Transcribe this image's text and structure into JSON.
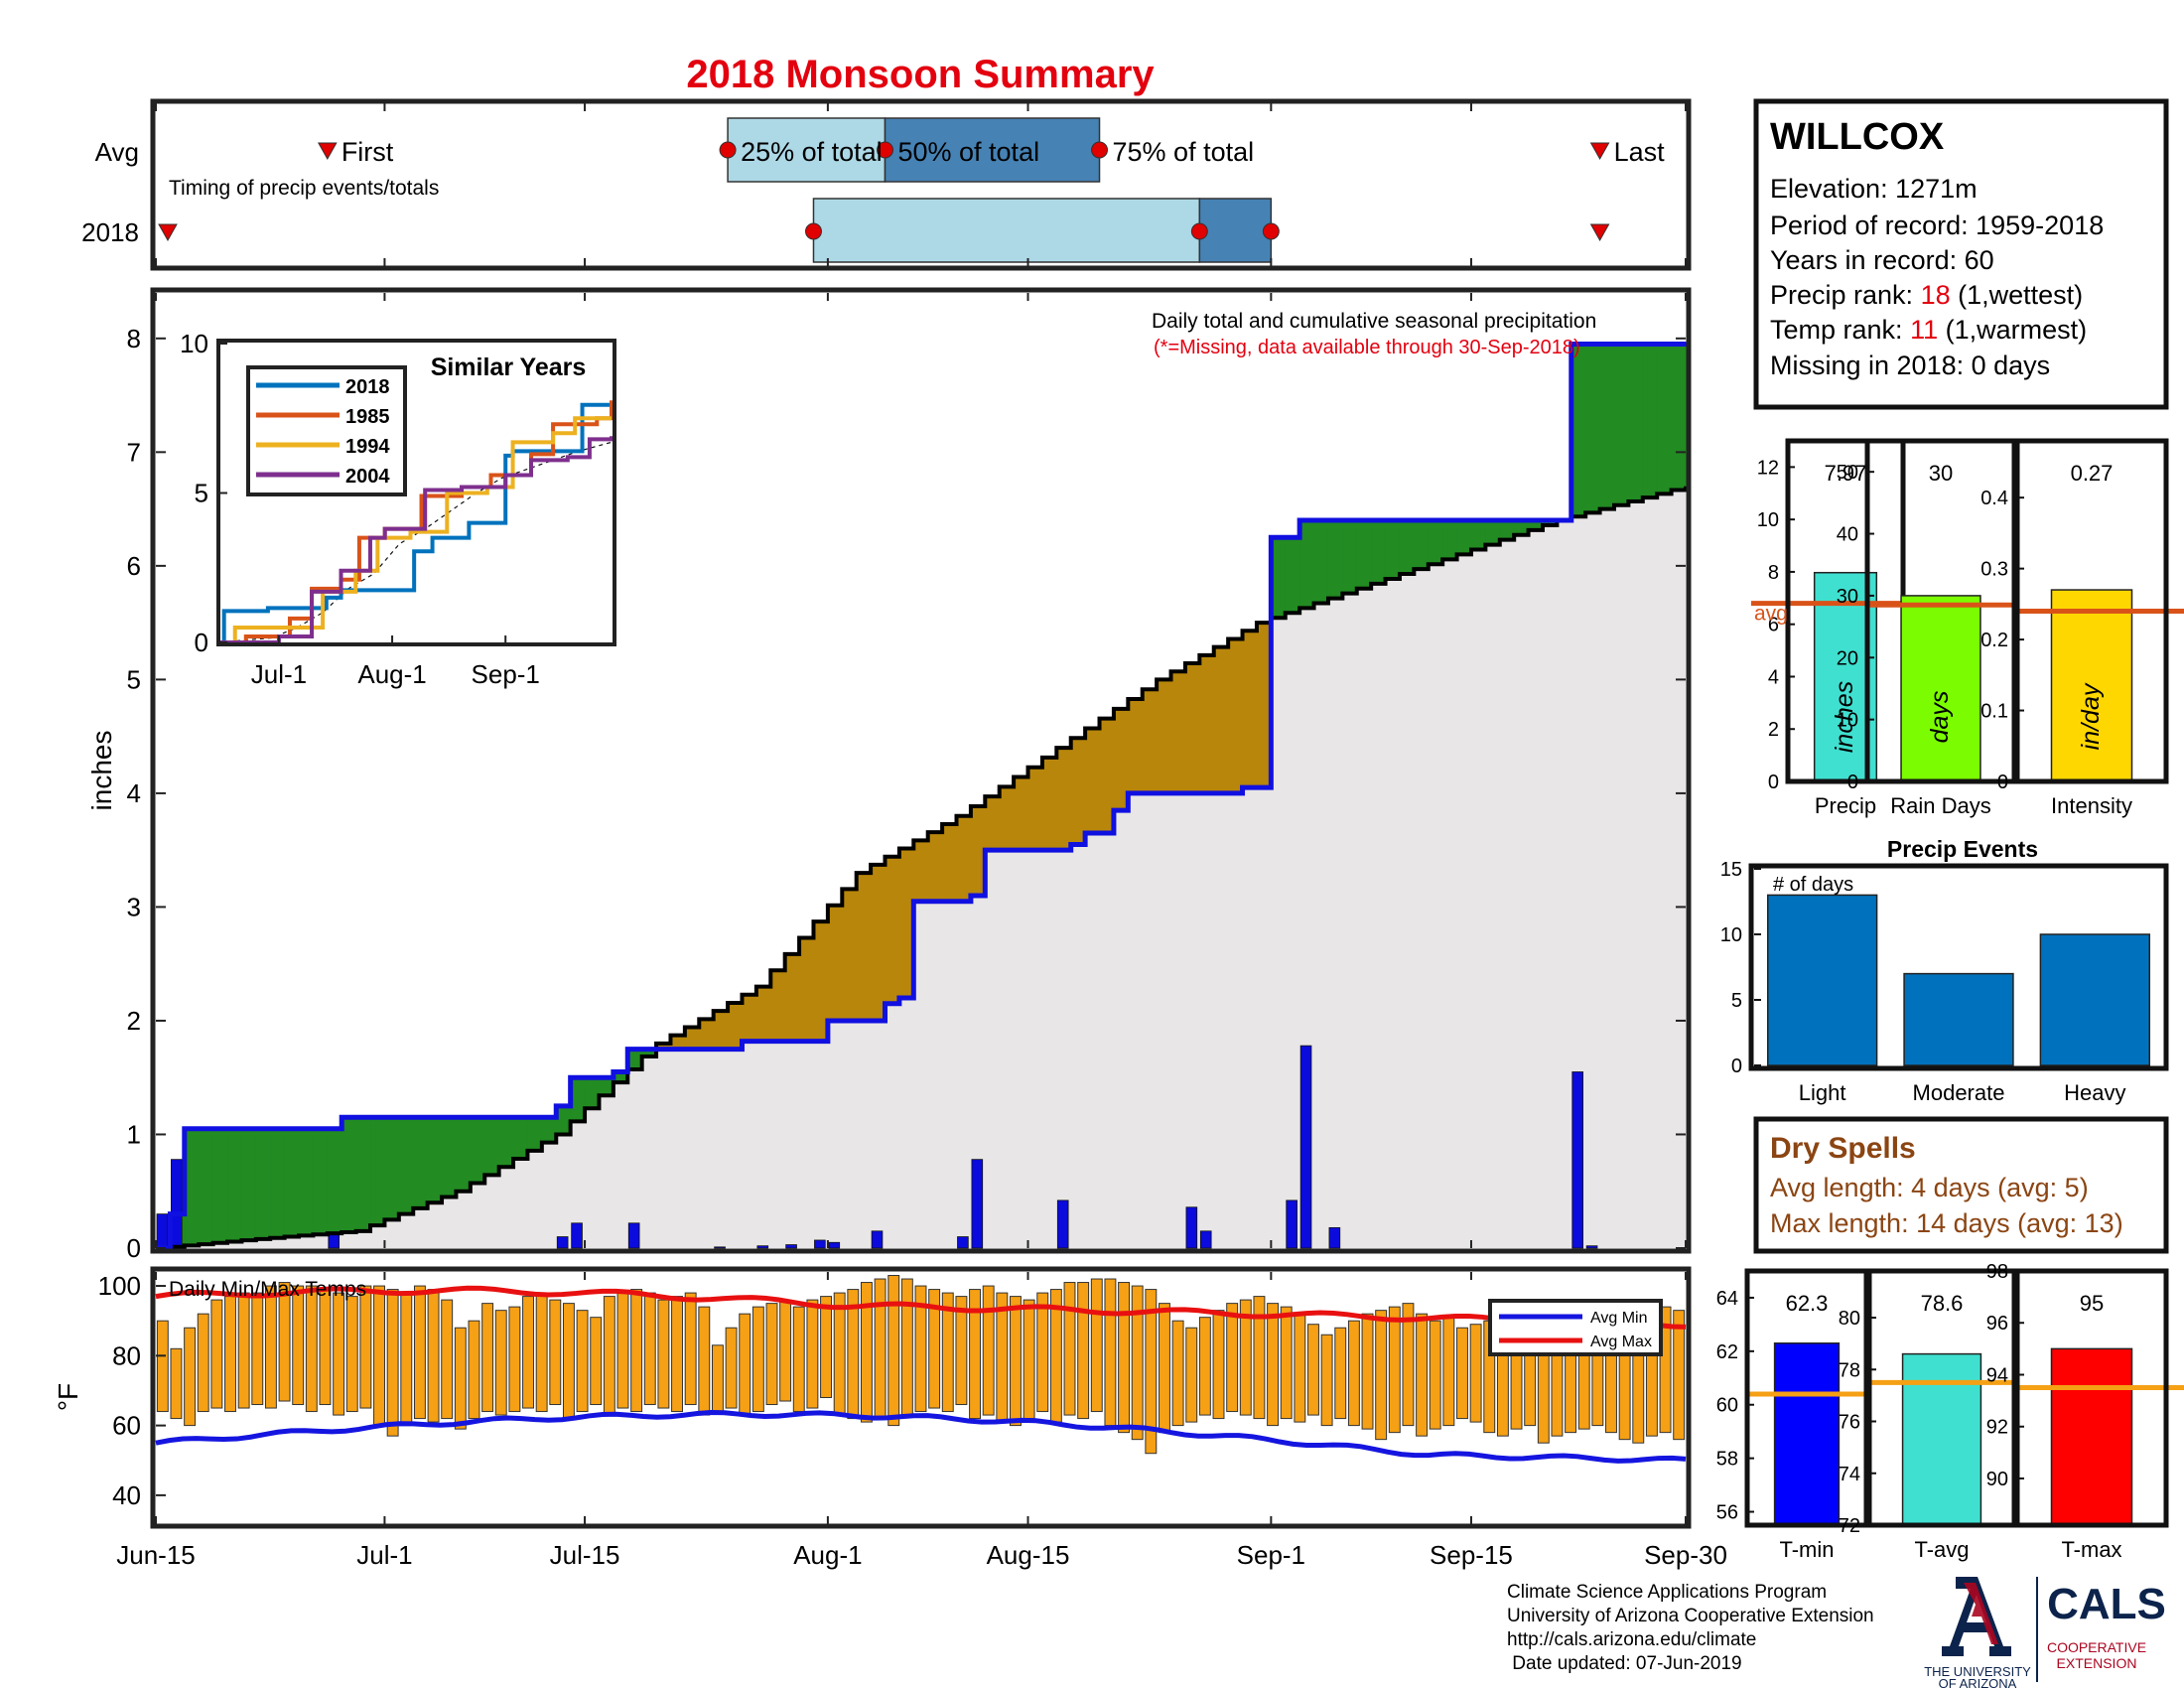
{
  "title": "2018 Monsoon Summary",
  "colors": {
    "title": "#e3000f",
    "missing": "#e3000f",
    "cum_2018": "#1010e0",
    "avg_cum": "#000000",
    "area_fill": "#e8e6e6",
    "above_avg": "#228b22",
    "below_avg": "#b8860b",
    "daily_bar": "#0b0bdd",
    "temp_bar": "#f5a015",
    "avg_min": "#1515e0",
    "avg_max": "#e81010",
    "timing_light": "#add8e6",
    "timing_dark": "#4682b4",
    "marker": "#e00000",
    "stat_avg_line": "#d95319",
    "temp_avg_line": "#f5a015",
    "precip_bar": "#40e0d0",
    "raindays_bar": "#7cfc00",
    "intensity_bar": "#ffd700",
    "events_bar": "#0072bd",
    "tmin_bar": "#0000ff",
    "tavg_bar": "#40e0d0",
    "tmax_bar": "#ff0000",
    "dry_text": "#8b4513",
    "ua_blue": "#0c234b",
    "ua_red": "#ab0520"
  },
  "timing": {
    "row_labels": [
      "Avg",
      "2018"
    ],
    "caption": "Timing of precip events/totals",
    "first_label": "First",
    "last_label": "Last",
    "p25_label": "25% of total",
    "p50_label": "50% of total",
    "p75_label": "75% of total",
    "avg": {
      "first": "2018-06-27",
      "p25": "2018-07-25",
      "p50": "2018-08-05",
      "p75": "2018-08-20",
      "last": "2018-09-24"
    },
    "y2018": {
      "first": "2018-06-15",
      "p25": "2018-07-31",
      "p50": "2018-08-20",
      "p75": "2018-08-27",
      "last": "2018-09-24"
    }
  },
  "station": {
    "name": "WILLCOX",
    "elevation_label": "Elevation: 1271m",
    "period_label": "Period of record: 1959-2018",
    "years_label": "Years in record: 60",
    "precip_rank_prefix": "Precip rank: ",
    "precip_rank": "18",
    "precip_rank_suffix": " (1,wettest)",
    "temp_rank_prefix": "Temp rank: ",
    "temp_rank": "11",
    "temp_rank_suffix": " (1,warmest)",
    "missing_label": "Missing in 2018: 0 days"
  },
  "main": {
    "note": "Daily total and cumulative seasonal precipitation",
    "missing_note": "(*=Missing, data available through 30-Sep-2018)",
    "ylabel": "inches",
    "ylim": [
      0,
      8.4
    ],
    "yticks": [
      "0",
      "1",
      "2",
      "3",
      "4",
      "5",
      "6",
      "7",
      "8"
    ],
    "xticks": [
      "Jun-15",
      "Jul-1",
      "Jul-15",
      "Aug-1",
      "Aug-15",
      "Sep-1",
      "Sep-15",
      "Sep-30"
    ]
  },
  "inset": {
    "title": "Similar Years",
    "xticks": [
      "Jul-1",
      "Aug-1",
      "Sep-1"
    ],
    "yticks": [
      "0",
      "5",
      "10"
    ],
    "legend": [
      "2018",
      "1985",
      "1994",
      "2004"
    ],
    "line_colors": [
      "#0072bd",
      "#d95319",
      "#edb120",
      "#7e2f8e"
    ]
  },
  "temps": {
    "caption": "Daily Min/Max Temps",
    "ylabel": "°F",
    "yticks": [
      "40",
      "60",
      "80",
      "100"
    ],
    "legend_min": "Avg Min",
    "legend_max": "Avg Max"
  },
  "stats": {
    "precip": {
      "label": "Precip",
      "unit": "inches",
      "value_text": "7.97",
      "value": 7.97,
      "avg": 6.8,
      "avg_label": "avg",
      "ylim": [
        0,
        13
      ],
      "ticks": [
        "0",
        "2",
        "4",
        "6",
        "8",
        "10",
        "12"
      ]
    },
    "raindays": {
      "label": "Rain Days",
      "unit": "days",
      "value_text": "30",
      "value": 30,
      "avg": 28.5,
      "ylim": [
        0,
        55
      ],
      "ticks": [
        "0",
        "10",
        "20",
        "30",
        "40",
        "50"
      ]
    },
    "intensity": {
      "label": "Intensity",
      "unit": "in/day",
      "value_text": "0.27",
      "value": 0.27,
      "avg": 0.24,
      "ylim": [
        0,
        0.48
      ],
      "ticks": [
        "0",
        "0.1",
        "0.2",
        "0.3",
        "0.4"
      ]
    }
  },
  "events": {
    "title": "Precip Events",
    "ylabel_note": "# of days",
    "categories": [
      "Light",
      "Moderate",
      "Heavy"
    ],
    "values": [
      13,
      7,
      10
    ],
    "ticks": [
      "0",
      "5",
      "10",
      "15"
    ]
  },
  "dry": {
    "title": "Dry Spells",
    "avg_line": "Avg length: 4 days (avg: 5)",
    "max_line": "Max length: 14 days (avg: 13)"
  },
  "temp_stats": {
    "tmin": {
      "label": "T-min",
      "value_text": "62.3",
      "value": 62.3,
      "avg": 60.4,
      "ylim": [
        55.5,
        65
      ],
      "ticks": [
        "56",
        "58",
        "60",
        "62",
        "64"
      ]
    },
    "tavg": {
      "label": "T-avg",
      "value_text": "78.6",
      "value": 78.6,
      "avg": 77.5,
      "ylim": [
        72,
        81.8
      ],
      "ticks": [
        "72",
        "74",
        "76",
        "78",
        "80"
      ]
    },
    "tmax": {
      "label": "T-max",
      "value_text": "95",
      "value": 95,
      "avg": 93.5,
      "ylim": [
        88.2,
        98
      ],
      "ticks": [
        "90",
        "92",
        "94",
        "96",
        "98"
      ]
    }
  },
  "footer": {
    "line1": "Climate Science Applications Program",
    "line2": "University of Arizona Cooperative Extension",
    "line3": "http://cals.arizona.edu/climate",
    "line4": " Date updated: 07-Jun-2019",
    "logo_ua_1": "THE UNIVERSITY",
    "logo_ua_2": "OF ARIZONA",
    "logo_cals": "CALS",
    "logo_coop_1": "COOPERATIVE",
    "logo_coop_2": "EXTENSION"
  },
  "chart_data": [
    {
      "type": "line",
      "title": "Daily total and cumulative seasonal precipitation",
      "ylabel": "inches",
      "ylim": [
        0,
        8.4
      ],
      "x_start": "2018-06-15",
      "x_end": "2018-09-30",
      "series": [
        {
          "name": "2018",
          "points": [
            [
              "2018-06-15",
              0
            ],
            [
              "2018-06-16",
              0.3
            ],
            [
              "2018-06-17",
              1.05
            ],
            [
              "2018-06-27",
              1.05
            ],
            [
              "2018-06-28",
              1.15
            ],
            [
              "2018-07-12",
              1.15
            ],
            [
              "2018-07-13",
              1.25
            ],
            [
              "2018-07-14",
              1.5
            ],
            [
              "2018-07-17",
              1.55
            ],
            [
              "2018-07-18",
              1.75
            ],
            [
              "2018-07-26",
              1.82
            ],
            [
              "2018-08-01",
              2.0
            ],
            [
              "2018-08-05",
              2.15
            ],
            [
              "2018-08-06",
              2.2
            ],
            [
              "2018-08-07",
              3.05
            ],
            [
              "2018-08-11",
              3.1
            ],
            [
              "2018-08-12",
              3.5
            ],
            [
              "2018-08-18",
              3.55
            ],
            [
              "2018-08-19",
              3.65
            ],
            [
              "2018-08-21",
              3.85
            ],
            [
              "2018-08-22",
              4.0
            ],
            [
              "2018-08-30",
              4.05
            ],
            [
              "2018-09-01",
              6.25
            ],
            [
              "2018-09-03",
              6.4
            ],
            [
              "2018-09-21",
              6.4
            ],
            [
              "2018-09-22",
              7.95
            ],
            [
              "2018-09-30",
              7.97
            ]
          ]
        },
        {
          "name": "",
          "points": [
            [
              "2018-06-15",
              0
            ],
            [
              "2018-06-22",
              0.08
            ],
            [
              "2018-06-29",
              0.15
            ],
            [
              "2018-07-06",
              0.5
            ],
            [
              "2018-07-13",
              1.0
            ],
            [
              "2018-07-20",
              1.8
            ],
            [
              "2018-07-27",
              2.3
            ],
            [
              "2018-08-03",
              3.3
            ],
            [
              "2018-08-10",
              3.8
            ],
            [
              "2018-08-17",
              4.4
            ],
            [
              "2018-08-24",
              5.0
            ],
            [
              "2018-08-31",
              5.5
            ],
            [
              "2018-09-07",
              5.8
            ],
            [
              "2018-09-14",
              6.1
            ],
            [
              "2018-09-21",
              6.4
            ],
            [
              "2018-09-30",
              6.7
            ]
          ]
        }
      ],
      "daily_values": [
        [
          "2018-06-15",
          0.3
        ],
        [
          "2018-06-16",
          0.78
        ],
        [
          "2018-06-27",
          0.12
        ],
        [
          "2018-07-13",
          0.1
        ],
        [
          "2018-07-14",
          0.22
        ],
        [
          "2018-07-18",
          0.22
        ],
        [
          "2018-07-24",
          0.01
        ],
        [
          "2018-07-27",
          0.02
        ],
        [
          "2018-07-29",
          0.03
        ],
        [
          "2018-07-31",
          0.07
        ],
        [
          "2018-08-01",
          0.05
        ],
        [
          "2018-08-04",
          0.15
        ],
        [
          "2018-08-10",
          0.1
        ],
        [
          "2018-08-11",
          0.78
        ],
        [
          "2018-08-17",
          0.42
        ],
        [
          "2018-08-26",
          0.36
        ],
        [
          "2018-08-27",
          0.15
        ],
        [
          "2018-09-02",
          0.42
        ],
        [
          "2018-09-03",
          1.78
        ],
        [
          "2018-09-05",
          0.18
        ],
        [
          "2018-09-22",
          1.55
        ],
        [
          "2018-09-23",
          0.02
        ]
      ]
    },
    {
      "type": "line",
      "title": "Similar Years",
      "ylim": [
        0,
        10
      ],
      "xticks": [
        "Jul-1",
        "Aug-1",
        "Sep-1"
      ],
      "series": [
        {
          "name": "2018",
          "points": [
            [
              "2018-06-15",
              0
            ],
            [
              "2018-06-16",
              1.05
            ],
            [
              "2018-06-28",
              1.15
            ],
            [
              "2018-07-14",
              1.5
            ],
            [
              "2018-07-18",
              1.75
            ],
            [
              "2018-08-07",
              3.05
            ],
            [
              "2018-08-12",
              3.5
            ],
            [
              "2018-08-22",
              4.0
            ],
            [
              "2018-09-01",
              6.25
            ],
            [
              "2018-09-03",
              6.4
            ],
            [
              "2018-09-22",
              7.95
            ],
            [
              "2018-09-30",
              7.97
            ]
          ]
        },
        {
          "name": "1985",
          "points": [
            [
              "2018-06-15",
              0
            ],
            [
              "2018-06-22",
              0.2
            ],
            [
              "2018-07-04",
              0.8
            ],
            [
              "2018-07-10",
              1.8
            ],
            [
              "2018-07-18",
              2.1
            ],
            [
              "2018-07-23",
              3.5
            ],
            [
              "2018-07-30",
              3.8
            ],
            [
              "2018-08-09",
              4.9
            ],
            [
              "2018-08-20",
              5.2
            ],
            [
              "2018-08-28",
              5.6
            ],
            [
              "2018-09-08",
              6.3
            ],
            [
              "2018-09-14",
              7.3
            ],
            [
              "2018-09-26",
              7.5
            ],
            [
              "2018-09-30",
              8.1
            ]
          ]
        },
        {
          "name": "1994",
          "points": [
            [
              "2018-06-15",
              0
            ],
            [
              "2018-06-19",
              0.5
            ],
            [
              "2018-07-03",
              0.5
            ],
            [
              "2018-07-13",
              1.7
            ],
            [
              "2018-07-22",
              2.4
            ],
            [
              "2018-07-28",
              3.5
            ],
            [
              "2018-08-06",
              3.7
            ],
            [
              "2018-08-16",
              5.0
            ],
            [
              "2018-08-27",
              5.2
            ],
            [
              "2018-09-03",
              6.7
            ],
            [
              "2018-09-14",
              7.0
            ],
            [
              "2018-09-20",
              7.5
            ],
            [
              "2018-09-30",
              7.5
            ]
          ]
        },
        {
          "name": "2004",
          "points": [
            [
              "2018-06-15",
              0
            ],
            [
              "2018-07-01",
              0.2
            ],
            [
              "2018-07-10",
              1.7
            ],
            [
              "2018-07-18",
              2.4
            ],
            [
              "2018-07-26",
              3.5
            ],
            [
              "2018-07-30",
              3.8
            ],
            [
              "2018-08-10",
              5.1
            ],
            [
              "2018-08-20",
              5.2
            ],
            [
              "2018-09-01",
              5.6
            ],
            [
              "2018-09-08",
              6.1
            ],
            [
              "2018-09-18",
              6.2
            ],
            [
              "2018-09-24",
              6.8
            ],
            [
              "2018-09-30",
              6.9
            ]
          ]
        }
      ]
    },
    {
      "type": "bar",
      "title": "Daily Min/Max Temps",
      "ylabel": "°F",
      "ylim": [
        32,
        104
      ],
      "tmax": [
        90,
        82,
        88,
        92,
        96,
        97,
        98,
        98,
        100,
        101,
        100,
        100,
        99,
        98,
        97,
        100,
        100,
        99,
        98,
        100,
        99,
        96,
        88,
        90,
        95,
        93,
        94,
        97,
        98,
        96,
        95,
        93,
        91,
        97,
        98,
        99,
        98,
        96,
        97,
        98,
        94,
        83,
        88,
        92,
        94,
        95,
        96,
        94,
        96,
        97,
        98,
        99,
        101,
        102,
        103,
        102,
        100,
        99,
        98,
        97,
        99,
        100,
        98,
        97,
        96,
        98,
        99,
        101,
        101,
        102,
        102,
        101,
        100,
        99,
        95,
        90,
        88,
        91,
        93,
        95,
        96,
        97,
        95,
        94,
        92,
        89,
        86,
        88,
        90,
        92,
        93,
        94,
        95,
        92,
        90,
        91,
        88,
        89,
        90,
        93,
        95,
        95,
        94,
        92,
        90,
        88,
        90,
        92,
        94,
        96,
        95,
        94,
        93
      ],
      "tmin": [
        64,
        62,
        60,
        64,
        65,
        64,
        65,
        66,
        65,
        67,
        66,
        64,
        66,
        63,
        64,
        65,
        60,
        57,
        60,
        62,
        61,
        62,
        59,
        62,
        64,
        63,
        64,
        65,
        64,
        66,
        62,
        64,
        66,
        63,
        65,
        64,
        66,
        65,
        64,
        66,
        63,
        64,
        65,
        63,
        64,
        66,
        67,
        64,
        65,
        68,
        63,
        62,
        61,
        62,
        60,
        63,
        64,
        65,
        64,
        66,
        62,
        63,
        61,
        60,
        62,
        64,
        61,
        63,
        62,
        64,
        60,
        58,
        56,
        52,
        58,
        60,
        61,
        63,
        62,
        64,
        63,
        62,
        60,
        62,
        61,
        63,
        60,
        62,
        60,
        59,
        56,
        58,
        60,
        57,
        59,
        60,
        62,
        61,
        58,
        57,
        59,
        60,
        55,
        57,
        58,
        59,
        60,
        58,
        56,
        55,
        57,
        58,
        56
      ],
      "avg_max_start": 97,
      "avg_max_end": 89,
      "avg_min_start": 55,
      "avg_min_end": 50
    },
    {
      "type": "bar",
      "title": "Precip",
      "categories": [
        "Precip"
      ],
      "values": [
        7.97
      ],
      "avg": 6.8,
      "ylim": [
        0,
        13
      ]
    },
    {
      "type": "bar",
      "title": "Rain Days",
      "categories": [
        "Rain Days"
      ],
      "values": [
        30
      ],
      "avg": 28.5,
      "ylim": [
        0,
        55
      ]
    },
    {
      "type": "bar",
      "title": "Intensity",
      "categories": [
        "Intensity"
      ],
      "values": [
        0.27
      ],
      "avg": 0.24,
      "ylim": [
        0,
        0.48
      ]
    },
    {
      "type": "bar",
      "title": "Precip Events",
      "categories": [
        "Light",
        "Moderate",
        "Heavy"
      ],
      "values": [
        13,
        7,
        10
      ],
      "ylim": [
        0,
        15
      ]
    },
    {
      "type": "bar",
      "title": "T-min",
      "categories": [
        "T-min"
      ],
      "values": [
        62.3
      ],
      "avg": 60.4,
      "ylim": [
        55.5,
        65
      ]
    },
    {
      "type": "bar",
      "title": "T-avg",
      "categories": [
        "T-avg"
      ],
      "values": [
        78.6
      ],
      "avg": 77.5,
      "ylim": [
        72,
        81.8
      ]
    },
    {
      "type": "bar",
      "title": "T-max",
      "categories": [
        "T-max"
      ],
      "values": [
        95
      ],
      "avg": 93.5,
      "ylim": [
        88.2,
        98
      ]
    }
  ]
}
